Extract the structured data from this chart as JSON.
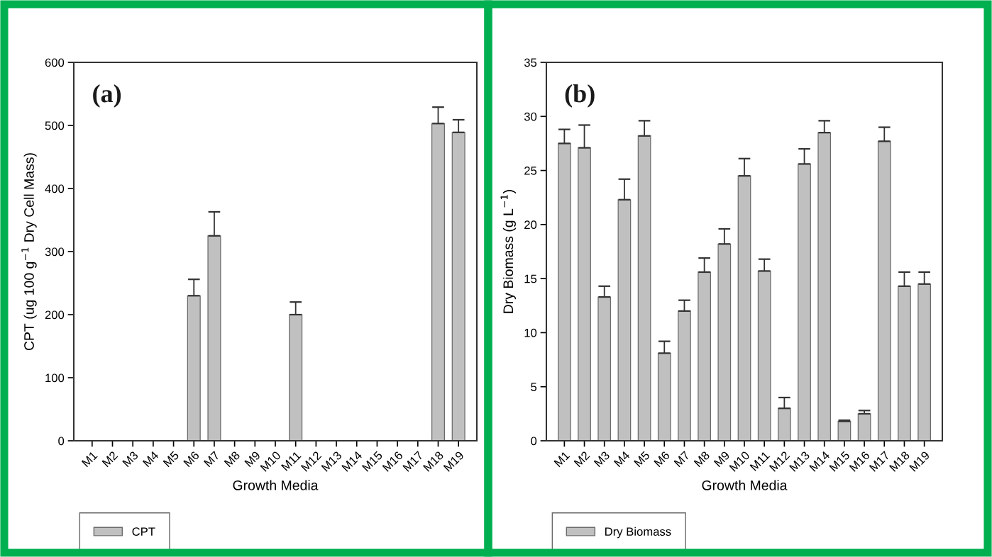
{
  "chart_data": [
    {
      "type": "bar",
      "categories": [
        "M1",
        "M2",
        "M3",
        "M4",
        "M5",
        "M6",
        "M7",
        "M8",
        "M9",
        "M10",
        "M11",
        "M12",
        "M13",
        "M14",
        "M15",
        "M16",
        "M17",
        "M18",
        "M19"
      ],
      "xlabel": "Growth Media",
      "ylabel": "CPT (ug 100 g$^{−1}$ Dry Cell Mass)",
      "annotations": [
        "(a)"
      ],
      "ylim": [
        0,
        600
      ],
      "yticks": [
        0,
        100,
        200,
        300,
        400,
        500,
        600
      ],
      "legend": "bottom left",
      "grid": false,
      "series": [
        {
          "name": "CPT",
          "color": "#c0c0c0",
          "values": [
            0,
            0,
            0,
            0,
            0,
            230,
            325,
            0,
            0,
            0,
            200,
            0,
            0,
            0,
            0,
            0,
            0,
            503,
            489
          ],
          "errors": [
            null,
            null,
            null,
            null,
            null,
            [
              230,
              256
            ],
            [
              325,
              363
            ],
            null,
            null,
            null,
            [
              200,
              220
            ],
            null,
            null,
            null,
            null,
            null,
            null,
            [
              503,
              529
            ],
            [
              489,
              509
            ]
          ]
        }
      ]
    },
    {
      "type": "bar",
      "categories": [
        "M1",
        "M2",
        "M3",
        "M4",
        "M5",
        "M6",
        "M7",
        "M8",
        "M9",
        "M10",
        "M11",
        "M12",
        "M13",
        "M14",
        "M15",
        "M16",
        "M17",
        "M18",
        "M19"
      ],
      "xlabel": "Growth Media",
      "ylabel": "Dry Biomass (g L$^{−1}$)",
      "annotations": [
        "(b)"
      ],
      "ylim": [
        0,
        35
      ],
      "yticks": [
        0,
        5,
        10,
        15,
        20,
        25,
        30,
        35
      ],
      "legend": "bottom left",
      "grid": false,
      "series": [
        {
          "name": "Dry Biomass",
          "color": "#c0c0c0",
          "values": [
            27.5,
            27.1,
            13.3,
            22.3,
            28.2,
            8.1,
            12.0,
            15.6,
            18.2,
            24.5,
            15.7,
            3.0,
            25.6,
            28.5,
            1.8,
            2.5,
            27.7,
            14.3,
            14.5
          ],
          "errors": [
            [
              27.5,
              28.8
            ],
            [
              27.1,
              29.2
            ],
            [
              13.3,
              14.3
            ],
            [
              22.3,
              24.2
            ],
            [
              28.2,
              29.6
            ],
            [
              8.1,
              9.2
            ],
            [
              12.0,
              13.0
            ],
            [
              15.6,
              16.9
            ],
            [
              18.2,
              19.6
            ],
            [
              24.5,
              26.1
            ],
            [
              15.7,
              16.8
            ],
            [
              3.0,
              4.0
            ],
            [
              25.6,
              27.0
            ],
            [
              28.5,
              29.6
            ],
            [
              1.8,
              1.9
            ],
            [
              2.5,
              2.8
            ],
            [
              27.7,
              29.0
            ],
            [
              14.3,
              15.6
            ],
            [
              14.5,
              15.6
            ]
          ]
        }
      ]
    }
  ]
}
